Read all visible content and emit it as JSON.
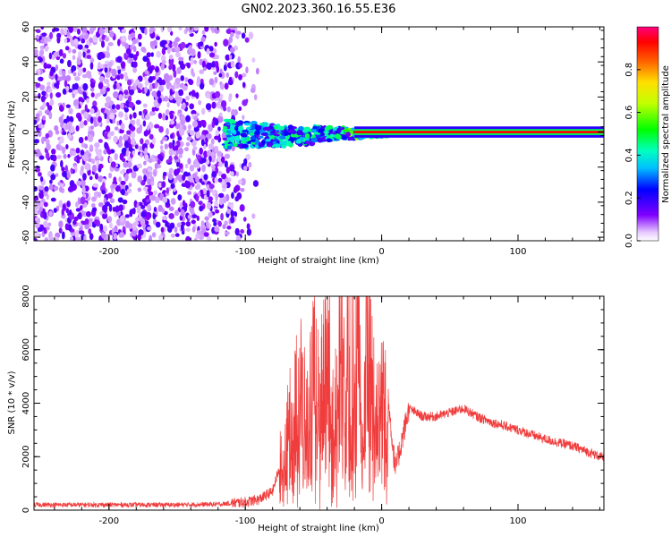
{
  "title": "GN02.2023.360.16.55.E36",
  "chart_data": [
    {
      "type": "heatmap",
      "xlabel": "Height of straight line (km)",
      "ylabel": "Frequency (Hz)",
      "xlim": [
        -255,
        163
      ],
      "ylim": [
        -62,
        60
      ],
      "x_ticks": [
        -200,
        -100,
        0,
        100
      ],
      "y_ticks": [
        -60,
        -40,
        -20,
        0,
        20,
        40,
        60
      ],
      "grid": false,
      "colorbar": {
        "label": "Normalized spectral amplitude",
        "range": [
          0,
          1
        ],
        "ticks": [
          "0.0",
          "0.2",
          "0.4",
          "0.6",
          "0.8"
        ],
        "colormap": "hsv_rainbow"
      },
      "regions": [
        {
          "x": [
            -255,
            -95
          ],
          "freq": [
            -62,
            60
          ],
          "amplitude": 0.12,
          "pattern": "broadband noise"
        },
        {
          "x": [
            -115,
            5
          ],
          "freq": [
            -12,
            8
          ],
          "amplitude": 0.35,
          "pattern": "narrowing carrier"
        },
        {
          "x": [
            0,
            163
          ],
          "freq": [
            -1,
            1
          ],
          "amplitude": 0.95,
          "pattern": "steady carrier line"
        }
      ]
    },
    {
      "type": "line",
      "xlabel": "Height of straight line (km)",
      "ylabel": "SNR (10 * v/v)",
      "xlim": [
        -255,
        163
      ],
      "ylim": [
        0,
        8000
      ],
      "x_ticks": [
        -200,
        -100,
        0,
        100
      ],
      "y_ticks": [
        0,
        2000,
        4000,
        6000,
        8000
      ],
      "grid": false,
      "series": [
        {
          "color": "#f03c3c",
          "x": [
            -255,
            -200,
            -150,
            -120,
            -100,
            -90,
            -80,
            -70,
            -60,
            -55,
            -50,
            -45,
            -40,
            -35,
            -30,
            -27,
            -24,
            -20,
            -17,
            -14,
            -11,
            -8,
            -5,
            0,
            5,
            10,
            20,
            30,
            40,
            50,
            60,
            70,
            80,
            100,
            120,
            140,
            163
          ],
          "y": [
            200,
            200,
            200,
            220,
            300,
            400,
            700,
            2500,
            4500,
            3000,
            5000,
            3500,
            7500,
            2500,
            6500,
            4500,
            6000,
            4500,
            7500,
            2000,
            8000,
            5000,
            3500,
            4500,
            4000,
            1500,
            3800,
            3500,
            3500,
            3650,
            3800,
            3500,
            3300,
            3000,
            2650,
            2400,
            1950
          ]
        }
      ]
    }
  ]
}
